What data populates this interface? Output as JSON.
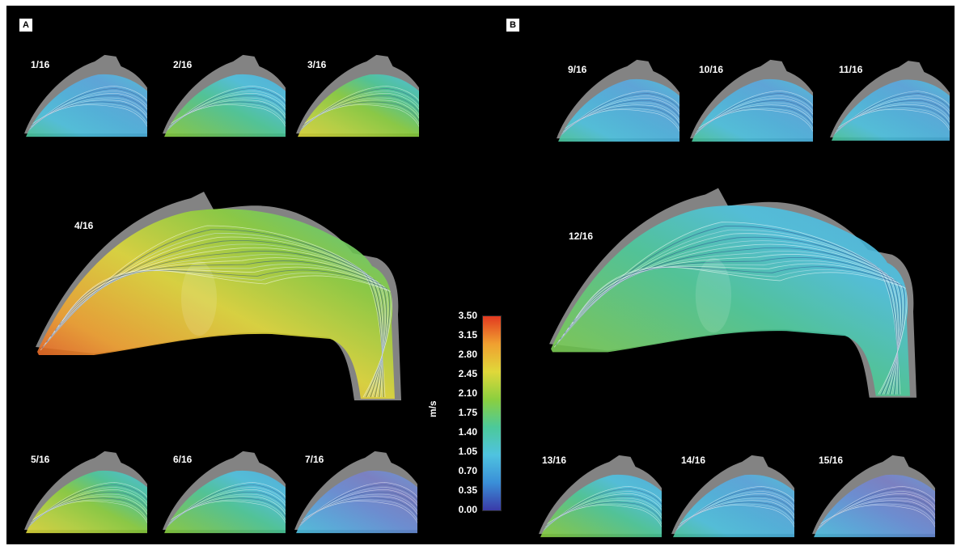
{
  "panels": [
    {
      "tag": "A"
    },
    {
      "tag": "B"
    }
  ],
  "frames": [
    {
      "label": "1/16",
      "flow": "medium"
    },
    {
      "label": "2/16",
      "flow": "medium-high"
    },
    {
      "label": "3/16",
      "flow": "high"
    },
    {
      "label": "4/16",
      "flow": "peak"
    },
    {
      "label": "5/16",
      "flow": "high"
    },
    {
      "label": "6/16",
      "flow": "medium-high"
    },
    {
      "label": "7/16",
      "flow": "low"
    },
    {
      "label": "9/16",
      "flow": "medium"
    },
    {
      "label": "10/16",
      "flow": "medium"
    },
    {
      "label": "11/16",
      "flow": "medium"
    },
    {
      "label": "12/16",
      "flow": "medium-high"
    },
    {
      "label": "13/16",
      "flow": "medium-high"
    },
    {
      "label": "14/16",
      "flow": "medium"
    },
    {
      "label": "15/16",
      "flow": "low"
    }
  ],
  "colorbar": {
    "unit": "m/s",
    "ticks": [
      "3.50",
      "3.15",
      "2.80",
      "2.45",
      "2.10",
      "1.75",
      "1.40",
      "1.05",
      "0.70",
      "0.35",
      "0.00"
    ],
    "min": 0.0,
    "max": 3.5,
    "stops": [
      "#3a3aa8",
      "#3a8fd8",
      "#4fc3e0",
      "#4cc99a",
      "#8bcf3f",
      "#e0d83a",
      "#f0a030",
      "#e23a20"
    ]
  },
  "colors": {
    "background": "#000000",
    "vessel_wall": "#9a9a9a"
  }
}
